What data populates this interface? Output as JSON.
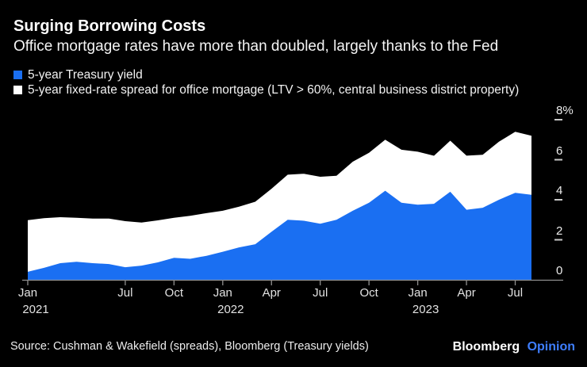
{
  "header": {
    "title": "Surging Borrowing Costs",
    "subtitle": "Office mortgage rates have more than doubled, largely thanks to the Fed"
  },
  "legend": {
    "items": [
      {
        "label": "5-year Treasury yield",
        "color": "#1a6ff2"
      },
      {
        "label": "5-year fixed-rate spread for office mortgage (LTV > 60%, central business district property)",
        "color": "#ffffff"
      }
    ]
  },
  "footer": {
    "source": "Source: Cushman & Wakefield (spreads), Bloomberg (Treasury yields)",
    "brand": {
      "name": "Bloomberg",
      "edition": "Opinion",
      "edition_color": "#3e7eff"
    }
  },
  "colors": {
    "background": "#000000",
    "treasury_blue": "#1a6ff2",
    "spread_white": "#ffffff",
    "axis_line": "#8f8f8f",
    "y_dash": "#c8c8c8"
  },
  "chart_data": {
    "type": "area",
    "stacked": true,
    "title": "Surging Borrowing Costs",
    "xlabel": "",
    "ylabel": "%",
    "ylim": [
      0,
      8
    ],
    "grid": false,
    "legend_position": "top-left",
    "x": [
      "Jan 2021",
      "Feb 2021",
      "Mar 2021",
      "Apr 2021",
      "May 2021",
      "Jun 2021",
      "Jul 2021",
      "Aug 2021",
      "Sep 2021",
      "Oct 2021",
      "Nov 2021",
      "Dec 2021",
      "Jan 2022",
      "Feb 2022",
      "Mar 2022",
      "Apr 2022",
      "May 2022",
      "Jun 2022",
      "Jul 2022",
      "Aug 2022",
      "Sep 2022",
      "Oct 2022",
      "Nov 2022",
      "Dec 2022",
      "Jan 2023",
      "Feb 2023",
      "Mar 2023",
      "Apr 2023",
      "May 2023",
      "Jun 2023",
      "Jul 2023",
      "Aug 2023"
    ],
    "series": [
      {
        "name": "5-year Treasury yield",
        "color": "#1a6ff2",
        "values": [
          0.4,
          0.6,
          0.83,
          0.9,
          0.83,
          0.79,
          0.63,
          0.71,
          0.87,
          1.1,
          1.05,
          1.2,
          1.4,
          1.62,
          1.78,
          2.4,
          3.0,
          2.95,
          2.8,
          3.0,
          3.45,
          3.85,
          4.45,
          3.85,
          3.75,
          3.8,
          4.4,
          3.5,
          3.6,
          4.0,
          4.35,
          4.25
        ]
      },
      {
        "name": "5-year fixed-rate spread for office mortgage (LTV > 60%, central business district property)",
        "color": "#ffffff",
        "values": [
          2.58,
          2.48,
          2.3,
          2.2,
          2.23,
          2.27,
          2.3,
          2.15,
          2.1,
          2.0,
          2.15,
          2.13,
          2.05,
          2.03,
          2.12,
          2.15,
          2.25,
          2.35,
          2.35,
          2.2,
          2.45,
          2.5,
          2.55,
          2.65,
          2.65,
          2.4,
          2.55,
          2.7,
          2.65,
          2.9,
          3.05,
          2.95
        ]
      }
    ],
    "stacked_totals": [
      2.98,
      3.08,
      3.13,
      3.1,
      3.06,
      3.06,
      2.93,
      2.86,
      2.97,
      3.1,
      3.2,
      3.33,
      3.45,
      3.65,
      3.9,
      4.55,
      5.25,
      5.3,
      5.15,
      5.2,
      5.9,
      6.35,
      7.0,
      6.5,
      6.4,
      6.2,
      6.95,
      6.2,
      6.25,
      6.9,
      7.4,
      7.2
    ],
    "y_ticks": [
      {
        "value": 8,
        "label": "8%"
      },
      {
        "value": 6,
        "label": "6"
      },
      {
        "value": 4,
        "label": "4"
      },
      {
        "value": 2,
        "label": "2"
      },
      {
        "value": 0,
        "label": "0"
      }
    ],
    "x_ticks": [
      {
        "i": 0,
        "label": "Jan",
        "year": "2021"
      },
      {
        "i": 6,
        "label": "Jul"
      },
      {
        "i": 9,
        "label": "Oct"
      },
      {
        "i": 12,
        "label": "Jan",
        "year": "2022"
      },
      {
        "i": 15,
        "label": "Apr"
      },
      {
        "i": 18,
        "label": "Jul"
      },
      {
        "i": 21,
        "label": "Oct"
      },
      {
        "i": 24,
        "label": "Jan",
        "year": "2023"
      },
      {
        "i": 27,
        "label": "Apr"
      },
      {
        "i": 30,
        "label": "Jul"
      }
    ]
  }
}
